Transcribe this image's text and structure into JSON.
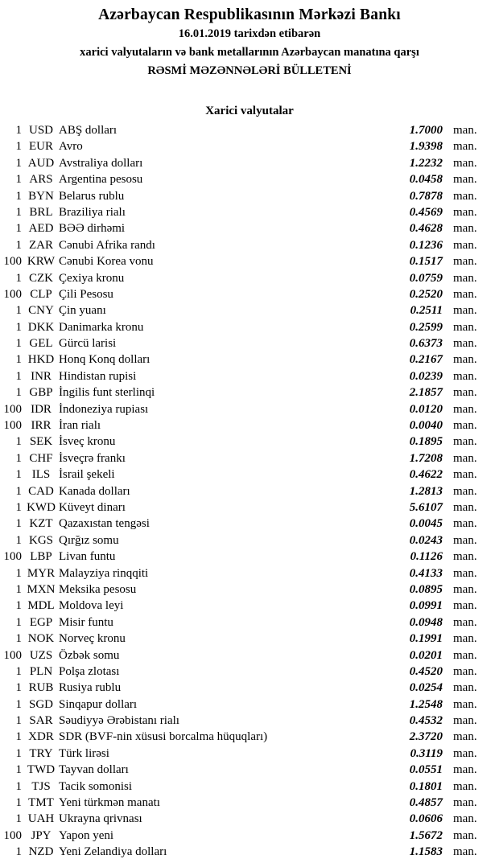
{
  "header": {
    "title": "Azərbaycan Respublikasının Mərkəzi Bankı",
    "date_line": "16.01.2019 tarixdən etibarən",
    "subtitle_line": "xarici valyutaların və bank metallarının Azərbaycan manatına qarşı",
    "bulletin_line": "RƏSMİ MƏZƏNNƏLƏRİ BÜLLETENİ"
  },
  "section": {
    "title": "Xarici valyutalar"
  },
  "unit_label": "man.",
  "colors": {
    "text": "#000000",
    "background": "#ffffff"
  },
  "rates": [
    {
      "nominal": "1",
      "code": "USD",
      "name": "ABŞ dolları",
      "rate": "1.7000"
    },
    {
      "nominal": "1",
      "code": "EUR",
      "name": "Avro",
      "rate": "1.9398"
    },
    {
      "nominal": "1",
      "code": "AUD",
      "name": "Avstraliya dolları",
      "rate": "1.2232"
    },
    {
      "nominal": "1",
      "code": "ARS",
      "name": "Argentina pesosu",
      "rate": "0.0458"
    },
    {
      "nominal": "1",
      "code": "BYN",
      "name": "Belarus rublu",
      "rate": "0.7878"
    },
    {
      "nominal": "1",
      "code": "BRL",
      "name": "Braziliya rialı",
      "rate": "0.4569"
    },
    {
      "nominal": "1",
      "code": "AED",
      "name": "BƏƏ dirhəmi",
      "rate": "0.4628"
    },
    {
      "nominal": "1",
      "code": "ZAR",
      "name": "Cənubi Afrika randı",
      "rate": "0.1236"
    },
    {
      "nominal": "100",
      "code": "KRW",
      "name": "Cənubi Korea vonu",
      "rate": "0.1517"
    },
    {
      "nominal": "1",
      "code": "CZK",
      "name": "Çexiya kronu",
      "rate": "0.0759"
    },
    {
      "nominal": "100",
      "code": "CLP",
      "name": "Çili Pesosu",
      "rate": "0.2520"
    },
    {
      "nominal": "1",
      "code": "CNY",
      "name": "Çin yuanı",
      "rate": "0.2511"
    },
    {
      "nominal": "1",
      "code": "DKK",
      "name": "Danimarka kronu",
      "rate": "0.2599"
    },
    {
      "nominal": "1",
      "code": "GEL",
      "name": "Gürcü larisi",
      "rate": "0.6373"
    },
    {
      "nominal": "1",
      "code": "HKD",
      "name": "Honq Konq dolları",
      "rate": "0.2167"
    },
    {
      "nominal": "1",
      "code": "INR",
      "name": "Hindistan rupisi",
      "rate": "0.0239"
    },
    {
      "nominal": "1",
      "code": "GBP",
      "name": "İngilis funt sterlinqi",
      "rate": "2.1857"
    },
    {
      "nominal": "100",
      "code": "IDR",
      "name": "İndoneziya rupiası",
      "rate": "0.0120"
    },
    {
      "nominal": "100",
      "code": "IRR",
      "name": "İran rialı",
      "rate": "0.0040"
    },
    {
      "nominal": "1",
      "code": "SEK",
      "name": "İsveç kronu",
      "rate": "0.1895"
    },
    {
      "nominal": "1",
      "code": "CHF",
      "name": "İsveçrə frankı",
      "rate": "1.7208"
    },
    {
      "nominal": "1",
      "code": "ILS",
      "name": "İsrail şekeli",
      "rate": "0.4622"
    },
    {
      "nominal": "1",
      "code": "CAD",
      "name": "Kanada dolları",
      "rate": "1.2813"
    },
    {
      "nominal": "1",
      "code": "KWD",
      "name": "Küveyt dinarı",
      "rate": "5.6107"
    },
    {
      "nominal": "1",
      "code": "KZT",
      "name": "Qazaxıstan tengəsi",
      "rate": "0.0045"
    },
    {
      "nominal": "1",
      "code": "KGS",
      "name": "Qırğız somu",
      "rate": "0.0243"
    },
    {
      "nominal": "100",
      "code": "LBP",
      "name": "Livan funtu",
      "rate": "0.1126"
    },
    {
      "nominal": "1",
      "code": "MYR",
      "name": "Malayziya rinqqiti",
      "rate": "0.4133"
    },
    {
      "nominal": "1",
      "code": "MXN",
      "name": "Meksika pesosu",
      "rate": "0.0895"
    },
    {
      "nominal": "1",
      "code": "MDL",
      "name": "Moldova leyi",
      "rate": "0.0991"
    },
    {
      "nominal": "1",
      "code": "EGP",
      "name": "Misir funtu",
      "rate": "0.0948"
    },
    {
      "nominal": "1",
      "code": "NOK",
      "name": "Norveç kronu",
      "rate": "0.1991"
    },
    {
      "nominal": "100",
      "code": "UZS",
      "name": "Özbək somu",
      "rate": "0.0201"
    },
    {
      "nominal": "1",
      "code": "PLN",
      "name": "Polşa zlotası",
      "rate": "0.4520"
    },
    {
      "nominal": "1",
      "code": "RUB",
      "name": "Rusiya rublu",
      "rate": "0.0254"
    },
    {
      "nominal": "1",
      "code": "SGD",
      "name": "Sinqapur dolları",
      "rate": "1.2548"
    },
    {
      "nominal": "1",
      "code": "SAR",
      "name": "Səudiyyə Ərəbistanı rialı",
      "rate": "0.4532"
    },
    {
      "nominal": "1",
      "code": "XDR",
      "name": "SDR (BVF-nin xüsusi borcalma hüquqları)",
      "rate": "2.3720"
    },
    {
      "nominal": "1",
      "code": "TRY",
      "name": "Türk lirəsi",
      "rate": "0.3119"
    },
    {
      "nominal": "1",
      "code": "TWD",
      "name": "Tayvan dolları",
      "rate": "0.0551"
    },
    {
      "nominal": "1",
      "code": "TJS",
      "name": "Tacik somonisi",
      "rate": "0.1801"
    },
    {
      "nominal": "1",
      "code": "TMT",
      "name": "Yeni türkmən manatı",
      "rate": "0.4857"
    },
    {
      "nominal": "1",
      "code": "UAH",
      "name": "Ukrayna qrivnası",
      "rate": "0.0606"
    },
    {
      "nominal": "100",
      "code": "JPY",
      "name": "Yapon yeni",
      "rate": "1.5672"
    },
    {
      "nominal": "1",
      "code": "NZD",
      "name": "Yeni Zelandiya dolları",
      "rate": "1.1583"
    }
  ]
}
